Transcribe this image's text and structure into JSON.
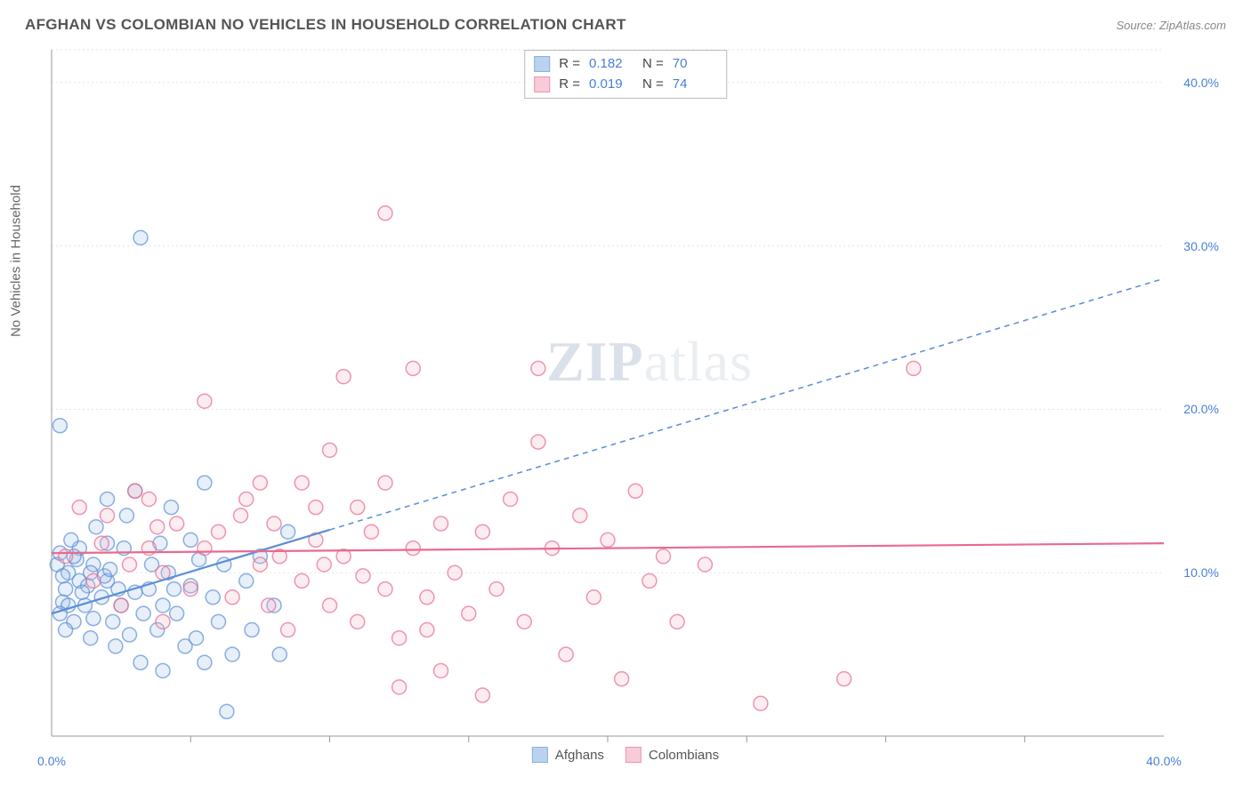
{
  "header": {
    "title": "AFGHAN VS COLOMBIAN NO VEHICLES IN HOUSEHOLD CORRELATION CHART",
    "source_prefix": "Source: ",
    "source_name": "ZipAtlas.com"
  },
  "watermark": {
    "zip": "ZIP",
    "atlas": "atlas"
  },
  "chart": {
    "type": "scatter",
    "background_color": "#ffffff",
    "grid_color": "#e3e3e3",
    "axis_color": "#999999",
    "tick_label_color": "#4a7fd6",
    "axis_label_color": "#666666",
    "ylabel": "No Vehicles in Household",
    "xlim": [
      0,
      40
    ],
    "ylim": [
      0,
      42
    ],
    "ytick_values": [
      10,
      20,
      30,
      40
    ],
    "ytick_labels": [
      "10.0%",
      "20.0%",
      "30.0%",
      "40.0%"
    ],
    "xtick_values": [
      0,
      40
    ],
    "xtick_labels": [
      "0.0%",
      "40.0%"
    ],
    "xtick_minor": [
      5,
      10,
      15,
      20,
      25,
      30,
      35
    ],
    "marker_radius": 8,
    "marker_stroke_width": 1.5,
    "marker_fill_opacity": 0.25,
    "trend_line_width": 2.2,
    "trend_dash": "6 5",
    "series": [
      {
        "name": "Afghans",
        "color": "#5b8fd6",
        "fill": "#9fc0e8",
        "trend": {
          "x1": 0,
          "y1": 7.5,
          "x2": 40,
          "y2": 28,
          "solid_until_x": 10
        },
        "points": [
          [
            0.2,
            10.5
          ],
          [
            0.3,
            11.2
          ],
          [
            0.5,
            9.0
          ],
          [
            0.4,
            8.2
          ],
          [
            0.6,
            10.0
          ],
          [
            0.3,
            19.0
          ],
          [
            1.0,
            9.5
          ],
          [
            1.2,
            8.0
          ],
          [
            1.5,
            7.2
          ],
          [
            1.0,
            11.5
          ],
          [
            1.4,
            6.0
          ],
          [
            1.8,
            8.5
          ],
          [
            2.0,
            9.5
          ],
          [
            2.0,
            14.5
          ],
          [
            2.2,
            7.0
          ],
          [
            2.5,
            8.0
          ],
          [
            2.3,
            5.5
          ],
          [
            2.7,
            13.5
          ],
          [
            2.8,
            6.2
          ],
          [
            3.0,
            15.0
          ],
          [
            3.0,
            8.8
          ],
          [
            3.2,
            4.5
          ],
          [
            3.3,
            7.5
          ],
          [
            3.5,
            9.0
          ],
          [
            3.2,
            30.5
          ],
          [
            3.8,
            6.5
          ],
          [
            4.0,
            8.0
          ],
          [
            4.0,
            4.0
          ],
          [
            4.2,
            10.0
          ],
          [
            4.5,
            7.5
          ],
          [
            4.3,
            14.0
          ],
          [
            4.8,
            5.5
          ],
          [
            5.0,
            9.2
          ],
          [
            5.0,
            12.0
          ],
          [
            5.2,
            6.0
          ],
          [
            5.5,
            4.5
          ],
          [
            5.8,
            8.5
          ],
          [
            5.5,
            15.5
          ],
          [
            6.0,
            7.0
          ],
          [
            6.2,
            10.5
          ],
          [
            6.5,
            5.0
          ],
          [
            6.3,
            1.5
          ],
          [
            7.0,
            9.5
          ],
          [
            7.2,
            6.5
          ],
          [
            7.5,
            11.0
          ],
          [
            8.0,
            8.0
          ],
          [
            8.2,
            5.0
          ],
          [
            8.5,
            12.5
          ],
          [
            1.5,
            10.5
          ],
          [
            2.0,
            11.8
          ],
          [
            0.8,
            7.0
          ],
          [
            1.3,
            9.2
          ],
          [
            0.5,
            6.5
          ],
          [
            0.7,
            12.0
          ],
          [
            1.1,
            8.8
          ],
          [
            0.9,
            10.8
          ],
          [
            0.4,
            9.8
          ],
          [
            0.6,
            8.0
          ],
          [
            1.6,
            12.8
          ],
          [
            1.9,
            9.8
          ],
          [
            2.1,
            10.2
          ],
          [
            2.4,
            9.0
          ],
          [
            0.3,
            7.5
          ],
          [
            0.8,
            11.0
          ],
          [
            1.4,
            10.0
          ],
          [
            2.6,
            11.5
          ],
          [
            3.6,
            10.5
          ],
          [
            4.4,
            9.0
          ],
          [
            3.9,
            11.8
          ],
          [
            5.3,
            10.8
          ]
        ]
      },
      {
        "name": "Colombians",
        "color": "#e86a8f",
        "fill": "#f4b6c8",
        "trend": {
          "x1": 0,
          "y1": 11.2,
          "x2": 40,
          "y2": 11.8,
          "solid_until_x": 40
        },
        "points": [
          [
            0.5,
            11.0
          ],
          [
            1.0,
            14.0
          ],
          [
            1.5,
            9.5
          ],
          [
            2.0,
            13.5
          ],
          [
            2.5,
            8.0
          ],
          [
            3.0,
            15.0
          ],
          [
            3.5,
            11.5
          ],
          [
            3.5,
            14.5
          ],
          [
            4.0,
            10.0
          ],
          [
            4.5,
            13.0
          ],
          [
            5.0,
            9.0
          ],
          [
            5.5,
            20.5
          ],
          [
            6.0,
            12.5
          ],
          [
            6.5,
            8.5
          ],
          [
            7.0,
            14.5
          ],
          [
            7.5,
            10.5
          ],
          [
            7.5,
            15.5
          ],
          [
            7.8,
            8.0
          ],
          [
            8.0,
            13.0
          ],
          [
            8.5,
            6.5
          ],
          [
            9.0,
            15.5
          ],
          [
            9.0,
            9.5
          ],
          [
            9.5,
            12.0
          ],
          [
            9.5,
            14.0
          ],
          [
            10.0,
            8.0
          ],
          [
            10.0,
            17.5
          ],
          [
            10.5,
            22.0
          ],
          [
            10.5,
            11.0
          ],
          [
            11.0,
            14.0
          ],
          [
            11.0,
            7.0
          ],
          [
            11.5,
            12.5
          ],
          [
            12.0,
            9.0
          ],
          [
            12.0,
            15.5
          ],
          [
            12.0,
            32.0
          ],
          [
            12.5,
            6.0
          ],
          [
            12.5,
            3.0
          ],
          [
            13.0,
            11.5
          ],
          [
            13.0,
            22.5
          ],
          [
            13.5,
            8.5
          ],
          [
            13.5,
            6.5
          ],
          [
            14.0,
            13.0
          ],
          [
            14.0,
            4.0
          ],
          [
            14.5,
            10.0
          ],
          [
            15.0,
            7.5
          ],
          [
            15.5,
            12.5
          ],
          [
            15.5,
            2.5
          ],
          [
            16.0,
            9.0
          ],
          [
            16.5,
            14.5
          ],
          [
            17.0,
            7.0
          ],
          [
            17.5,
            18.0
          ],
          [
            17.5,
            22.5
          ],
          [
            18.0,
            11.5
          ],
          [
            18.5,
            5.0
          ],
          [
            19.0,
            13.5
          ],
          [
            19.5,
            8.5
          ],
          [
            20.0,
            12.0
          ],
          [
            20.5,
            3.5
          ],
          [
            21.0,
            15.0
          ],
          [
            21.5,
            9.5
          ],
          [
            22.0,
            11.0
          ],
          [
            22.5,
            7.0
          ],
          [
            23.5,
            10.5
          ],
          [
            25.5,
            2.0
          ],
          [
            28.5,
            3.5
          ],
          [
            31.0,
            22.5
          ],
          [
            4.0,
            7.0
          ],
          [
            5.5,
            11.5
          ],
          [
            6.8,
            13.5
          ],
          [
            8.2,
            11.0
          ],
          [
            9.8,
            10.5
          ],
          [
            11.2,
            9.8
          ],
          [
            2.8,
            10.5
          ],
          [
            1.8,
            11.8
          ],
          [
            3.8,
            12.8
          ]
        ]
      }
    ],
    "correlation_legend": {
      "rows": [
        {
          "series_idx": 0,
          "r_label": "R =",
          "r": "0.182",
          "n_label": "N =",
          "n": "70"
        },
        {
          "series_idx": 1,
          "r_label": "R =",
          "r": "0.019",
          "n_label": "N =",
          "n": "74"
        }
      ]
    },
    "series_legend": {
      "items": [
        {
          "series_idx": 0,
          "label": "Afghans"
        },
        {
          "series_idx": 1,
          "label": "Colombians"
        }
      ]
    }
  }
}
